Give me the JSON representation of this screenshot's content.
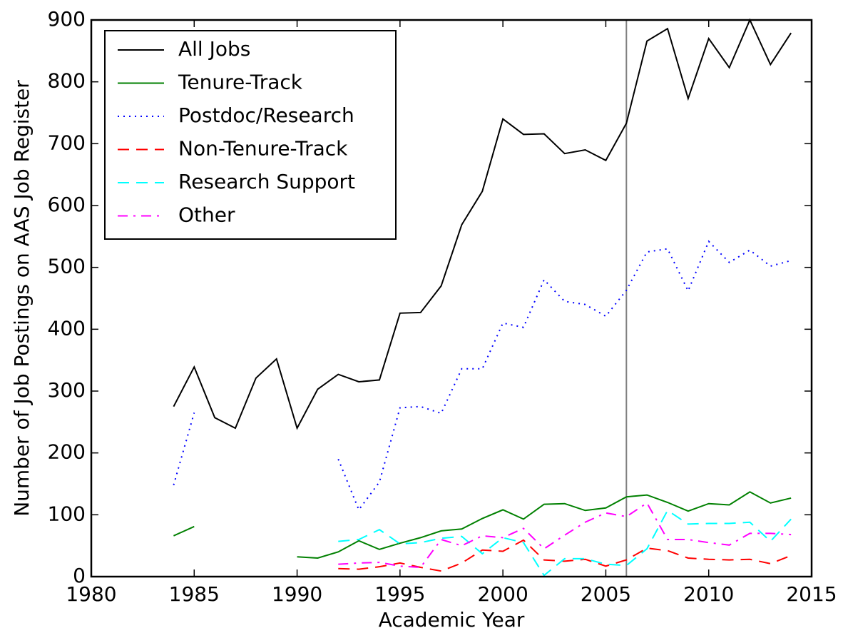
{
  "chart_data": {
    "type": "line",
    "xlabel": "Academic Year",
    "ylabel": "Number of Job Postings on AAS Job Register",
    "x": [
      1984,
      1985,
      1986,
      1987,
      1988,
      1989,
      1990,
      1991,
      1992,
      1993,
      1994,
      1995,
      1996,
      1997,
      1998,
      1999,
      2000,
      2001,
      2002,
      2003,
      2004,
      2005,
      2006,
      2007,
      2008,
      2009,
      2010,
      2011,
      2012,
      2013,
      2014
    ],
    "series": [
      {
        "name": "All Jobs",
        "color": "#000000",
        "style": "solid",
        "values": [
          275,
          339,
          257,
          240,
          321,
          352,
          240,
          303,
          327,
          315,
          318,
          426,
          427,
          470,
          569,
          623,
          740,
          715,
          716,
          684,
          690,
          673,
          733,
          866,
          886,
          773,
          870,
          823,
          900,
          828,
          879
        ]
      },
      {
        "name": "Tenure-Track",
        "color": "#008000",
        "style": "solid",
        "values": [
          66,
          81,
          null,
          null,
          null,
          null,
          32,
          30,
          40,
          58,
          44,
          54,
          63,
          74,
          77,
          94,
          108,
          93,
          117,
          118,
          107,
          111,
          129,
          132,
          120,
          106,
          118,
          116,
          137,
          119,
          127
        ]
      },
      {
        "name": "Postdoc/Research",
        "color": "#0000ff",
        "style": "dotted",
        "values": [
          148,
          265,
          null,
          null,
          null,
          null,
          null,
          null,
          190,
          108,
          153,
          273,
          275,
          264,
          336,
          336,
          410,
          403,
          480,
          445,
          440,
          421,
          463,
          525,
          530,
          462,
          542,
          508,
          528,
          502,
          511
        ]
      },
      {
        "name": "Non-Tenure-Track",
        "color": "#ff0000",
        "style": "dashed",
        "values": [
          null,
          null,
          null,
          null,
          null,
          null,
          null,
          null,
          13,
          12,
          16,
          22,
          15,
          9,
          22,
          43,
          41,
          59,
          27,
          25,
          28,
          17,
          27,
          46,
          42,
          30,
          28,
          27,
          28,
          21,
          34
        ]
      },
      {
        "name": "Research Support",
        "color": "#00ffff",
        "style": "dashed",
        "values": [
          null,
          null,
          null,
          null,
          null,
          null,
          null,
          null,
          57,
          60,
          76,
          53,
          55,
          62,
          65,
          37,
          63,
          55,
          2,
          29,
          29,
          20,
          18,
          45,
          107,
          85,
          86,
          86,
          88,
          57,
          93
        ]
      },
      {
        "name": "Other",
        "color": "#ff00ff",
        "style": "dashdot",
        "values": [
          null,
          null,
          null,
          null,
          null,
          null,
          null,
          null,
          20,
          22,
          23,
          17,
          15,
          60,
          50,
          66,
          63,
          78,
          45,
          67,
          88,
          103,
          97,
          119,
          60,
          60,
          55,
          51,
          70,
          70,
          68
        ]
      }
    ],
    "vline": 2006,
    "vline_color": "#808080",
    "xlim": [
      1980,
      2015
    ],
    "xticks": [
      1980,
      1985,
      1990,
      1995,
      2000,
      2005,
      2010,
      2015
    ],
    "ylim": [
      0,
      900
    ],
    "yticks": [
      0,
      100,
      200,
      300,
      400,
      500,
      600,
      700,
      800,
      900
    ],
    "legend": "upper left"
  }
}
